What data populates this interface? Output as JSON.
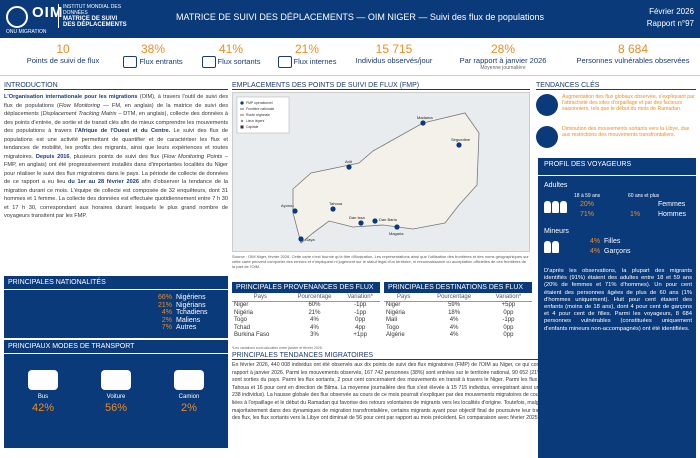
{
  "header": {
    "logo": {
      "name": "OIM",
      "sub": "ONU MIGRATION"
    },
    "dtm": {
      "line1": "INSTITUT MONDIAL DES DONNÉES",
      "line2": "MATRICE DE SUIVI",
      "line3": "DES DÉPLACEMENTS"
    },
    "title": "MATRICE DE SUIVI DES DÉPLACEMENTS — OIM NIGER — Suivi des flux de populations",
    "date": "Février 2026",
    "report": "Rapport n°97"
  },
  "kpis": [
    {
      "value": "10",
      "label": "Points de suivi de flux",
      "icon": "checkpoint-icon"
    },
    {
      "value": "38%",
      "label": "Flux entrants",
      "icon": "incoming-icon"
    },
    {
      "value": "41%",
      "label": "Flux sortants",
      "icon": "outgoing-icon"
    },
    {
      "value": "21%",
      "label": "Flux internes",
      "icon": "internal-icon"
    },
    {
      "value": "15 715",
      "label": "Individus observés/jour",
      "icon": "people-icon"
    },
    {
      "value": "28%",
      "label": "Par rapport à janvier 2026",
      "sub": "Moyenne journalière",
      "icon": "trend-icon"
    },
    {
      "value": "8 684",
      "label": "Personnes vulnérables observées",
      "icon": "vulnerable-icon"
    }
  ],
  "intro": {
    "title": "INTRODUCTION",
    "p1_b1": "L'Organisation internationale pour les migrations",
    "p1_t1": " (OIM), à travers l'outil de suivi des flux de populations (",
    "p1_i1": "Flow Monitoring",
    "p1_t2": " — FM, en anglais) de la matrice de suivi des déplacements (",
    "p1_i2": "Displacement Tracking Matrix",
    "p1_t3": " – DTM, en anglais), collecte des données à des points d'entrée, de sortie et de transit clés afin de mieux comprendre les mouvements des populations à travers ",
    "p1_b2": "l'Afrique de l'Ouest et du Centre.",
    "p1_t4": " Le suivi des flux de populations est une activité permettant de quantifier et de caractériser les flux et tendances de mobilité, les profils des migrants, ainsi que leurs expériences et routes migratoires. ",
    "p1_b3": "Depuis 2016",
    "p1_t5": ", plusieurs points de suivi des flux (",
    "p1_i3": "Flow Monitoring Points",
    "p1_t6": " – FMP, en anglais) ont été progressivement installés dans d'importantes localités du Niger pour réaliser le suivi des flux migratoires dans le pays. La période de collecte de données de ce rapport a eu lieu ",
    "p1_b4": "du 1er au 28 février 2026",
    "p1_t7": " afin d'observer la tendance de la migration durant ce mois. L'équipe de collecte est composée de 32 enquêteurs, dont 31 hommes et 1 femme. La collecte des données est effectuée quotidiennement entre 7 h 30 et 17 h 30, correspondant aux horaires durant lesquels le plus grand nombre de voyageurs transitent par les FMP."
  },
  "nationalities": {
    "title": "PRINCIPALES NATIONALITÉS",
    "rows": [
      {
        "pct": "66%",
        "name": "Nigériens"
      },
      {
        "pct": "21%",
        "name": "Nigérians"
      },
      {
        "pct": "4%",
        "name": "Tchadiens"
      },
      {
        "pct": "2%",
        "name": "Maliens"
      },
      {
        "pct": "7%",
        "name": "Autres"
      }
    ]
  },
  "transport": {
    "title": "PRINCIPAUX MODES DE TRANSPORT",
    "items": [
      {
        "label": "Bus",
        "pct": "42%",
        "icon": "bus-icon"
      },
      {
        "label": "Voiture",
        "pct": "56%",
        "icon": "car-icon"
      },
      {
        "label": "Camion",
        "pct": "2%",
        "icon": "truck-icon"
      }
    ]
  },
  "map": {
    "title": "EMPLACEMENTS DES POINTS DE SUIVI DE FLUX (FMP)",
    "legend": [
      "FMP opérationnel",
      "Frontière nationale",
      "Route régionale",
      "Lieux légers",
      "Capitale"
    ],
    "labels": [
      "Madama",
      "Séguedine",
      "Arlit",
      "Tahoua",
      "Ayorou",
      "Dan Barto",
      "Dan Issa",
      "Magaria",
      "Gaya"
    ],
    "note": "Source : OIM Niger, février 2026. Cette carte n'est fournie qu'à titre d'illustration. Les représentations ainsi que l'utilisation des frontières et des noms géographiques sur cette carte peuvent comporter des erreurs et n'impliquent ni jugement sur le statut légal d'un territoire, ni reconnaissance ou acceptation officielles de ces frontières de la part de l'OIM."
  },
  "prov": {
    "title": "PRINCIPALES PROVENANCES DES FLUX",
    "headers": [
      "Pays",
      "Pourcentage",
      "Variation*"
    ],
    "rows": [
      [
        "Niger",
        "60%",
        "-1pp"
      ],
      [
        "Nigéria",
        "21%",
        "-1pp"
      ],
      [
        "Togo",
        "4%",
        "0pp"
      ],
      [
        "Tchad",
        "4%",
        "4pp"
      ],
      [
        "Burkina Faso",
        "3%",
        "+1pp"
      ]
    ],
    "note": "*Les variations sont calculées entre janvier et février 2026."
  },
  "dest": {
    "title": "PRINCIPALES DESTINATIONS DES FLUX",
    "headers": [
      "Pays",
      "Pourcentage",
      "Variation*"
    ],
    "rows": [
      [
        "Niger",
        "59%",
        "+5pp"
      ],
      [
        "Nigéria",
        "18%",
        "0pp"
      ],
      [
        "Mali",
        "4%",
        "-1pp"
      ],
      [
        "Togo",
        "4%",
        "0pp"
      ],
      [
        "Algérie",
        "4%",
        "0pp"
      ]
    ]
  },
  "trends": {
    "title": "PRINCIPALES TENDANCES MIGRATOIRES",
    "text": "En février 2026, 440 008 individus ont été observés aux dix points de suivi des flux migratoires (FMP) de l'OIM au Niger, ce qui correspond à une hausse de 33 pour cent du flux migratoire global par rapport à janvier 2026. Parmi les mouvements observés, 167 742 personnes (38%) sont entrées sur le territoire national, 90 652 (21%) ont effectué des mouvements internes, tandis que 181 614 (41%) sont sorties du pays. Parmi les flux sortants, 2 pour cent concernaient des mouvements en transit à travers le Niger. Parmi les flux internes, 44 pour cent allaient en direction d'Arlit, 40 pour cent vers Tahoua et 16 pour cent en direction de Bilma. La moyenne journalière des flux s'est élevée à 15 715 individus, enregistrant ainsi une augmentation de 28 pour cent par rapport au mois précédent (12 238 individus). La hausse globale des flux observée au cours de ce mois pourrait s'expliquer par des mouvements migratoires de courte durée, influencés par les activités commerciales, les opportunités liées à l'orpaillage et le début du Ramadan qui favorise des retours volontaires de migrants vers les localités d'origine. Toutefois, malgré cette hausse, les flux sortants restent prédominants et s'inscrivent majoritairement dans des dynamiques de migration transfrontalière, certains migrants ayant pour objectif final de poursuivre leur trajet vers l'Afrique du Nord et l'Europe. Malgré l'augmentation globale des flux, les flux sortants vers la Libye ont diminué de 56 pour cent par rapport au mois précédent. En comparaison avec février 2025, le flux migratoire total a augmenté de 42 pour cent en février 2026."
  },
  "key_trends": {
    "title": "TENDANCES CLÉS",
    "items": [
      {
        "text": "Augmentation des flux globaux observée, s'expliquant par l'attractivité des sites d'orpaillage et par des facteurs saisonniers, tels que le début du mois de Ramadan.",
        "icon": "trend-up-icon"
      },
      {
        "text": "Diminution des mouvements sortants vers la Libye, due aux restrictions des mouvements transfrontaliers.",
        "icon": "trend-down-icon"
      }
    ]
  },
  "profile": {
    "title": "PROFIL DES VOYAGEURS",
    "adults": {
      "label": "Adultes",
      "age1": "18 à 59 ans",
      "age2": "60 ans et plus",
      "f_pct1": "20%",
      "f_pct2": "",
      "f_label": "Femmes",
      "m_pct1": "71%",
      "m_pct2": "1%",
      "m_label": "Hommes"
    },
    "minors": {
      "label": "Mineurs",
      "g_pct": "4%",
      "g_label": "Filles",
      "b_pct": "4%",
      "b_label": "Garçons"
    },
    "text": "D'après les observations, la plupart des migrants identifiés (91%) étaient des adultes entre 18 et 59 ans (20% de femmes et 71% d'hommes). Un pour cent étaient des personnes âgées de plus de 60 ans (1% d'hommes uniquement). Huit pour cent étaient des enfants (moins de 18 ans), dont 4 pour cent de garçons et 4 pour cent de filles. Parmi les voyageurs, 8 684 personnes vulnérables (constituées uniquement d'enfants mineurs non-accompagnés) ont été identifiées."
  }
}
